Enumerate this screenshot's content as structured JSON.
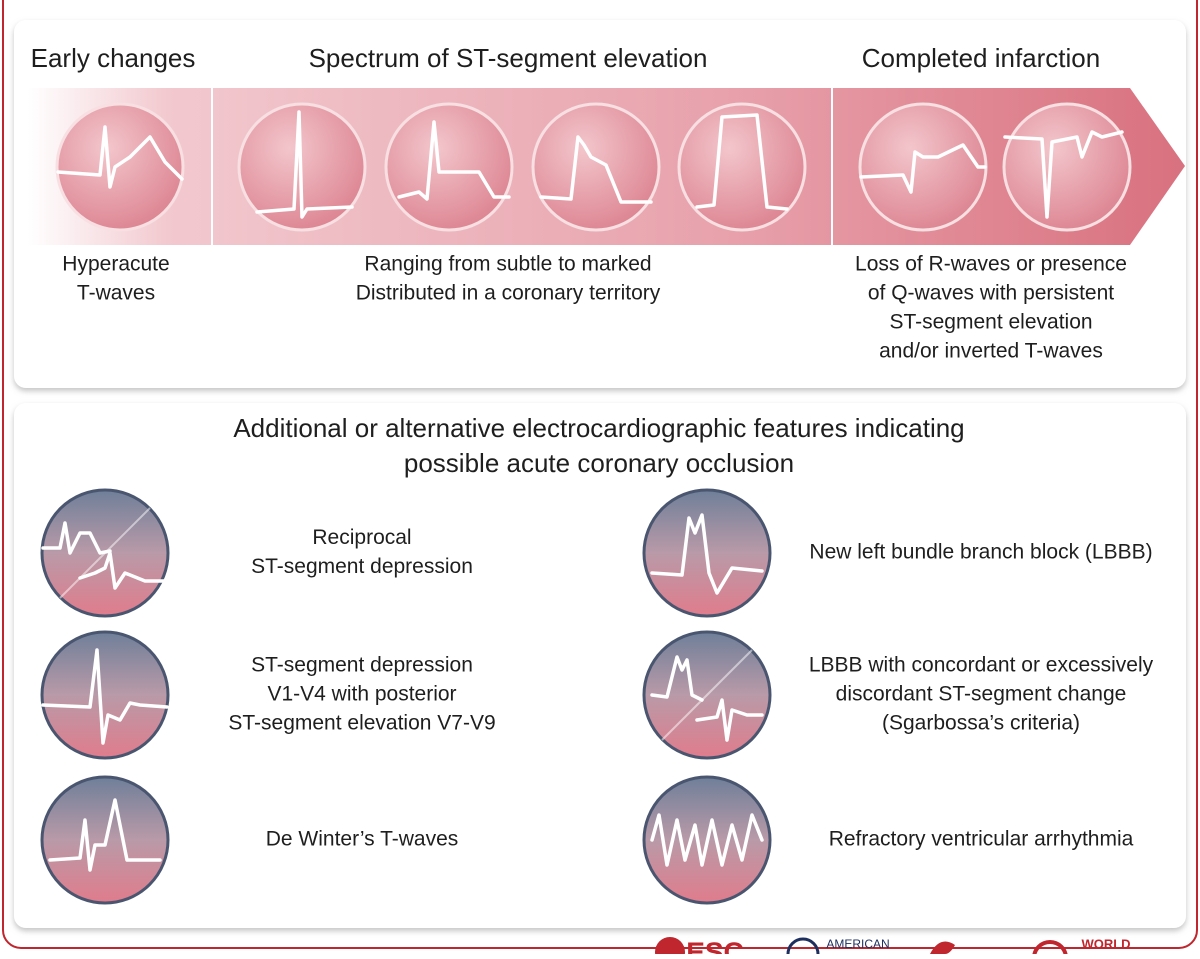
{
  "top": {
    "headers": [
      "Early changes",
      "Spectrum of ST-segment elevation",
      "Completed infarction"
    ],
    "captions": [
      [
        "Hyperacute",
        "T-waves"
      ],
      [
        "Ranging from subtle to marked",
        "Distributed in a coronary territory"
      ],
      [
        "Loss of R-waves or presence",
        "of Q-waves with persistent",
        "ST-segment elevation",
        "and/or inverted T-waves"
      ]
    ]
  },
  "bottom": {
    "title": [
      "Additional or alternative electrocardiographic features indicating",
      "possible acute coronary occlusion"
    ],
    "features": [
      [
        "Reciprocal",
        "ST-segment depression"
      ],
      [
        "New left bundle branch block (LBBB)"
      ],
      [
        "ST-segment depression",
        "V1-V4 with posterior",
        "ST-segment elevation V7-V9"
      ],
      [
        "LBBB with concordant or excessively",
        "discordant ST-segment change",
        "(Sgarbossa’s criteria)"
      ],
      [
        "De Winter’s T-waves"
      ],
      [
        "Refractory ventricular arrhythmia"
      ]
    ]
  },
  "logos": [
    "ESC",
    "AMERICAN",
    "WORLD"
  ]
}
